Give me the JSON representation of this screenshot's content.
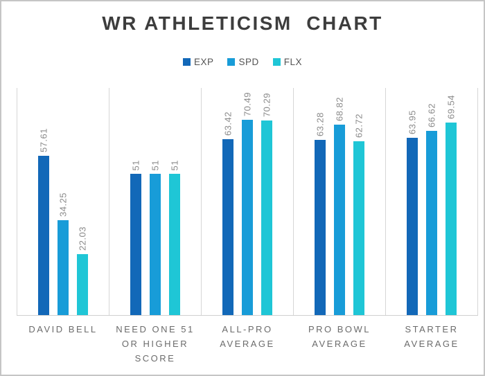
{
  "chart_data": {
    "type": "bar",
    "title": "WR ATHLETICISM  CHART",
    "legend_position": "top-center",
    "categories": [
      "DAVID BELL",
      "NEED ONE 51 OR HIGHER SCORE",
      "ALL-PRO AVERAGE",
      "PRO BOWL AVERAGE",
      "STARTER AVERAGE"
    ],
    "category_label_lines": [
      [
        "DAVID BELL"
      ],
      [
        "NEED ONE 51",
        "OR HIGHER",
        "SCORE"
      ],
      [
        "ALL-PRO",
        "AVERAGE"
      ],
      [
        "PRO BOWL",
        "AVERAGE"
      ],
      [
        "STARTER",
        "AVERAGE"
      ]
    ],
    "series": [
      {
        "name": "EXP",
        "color": "#1268b8",
        "values": [
          57.61,
          51,
          63.42,
          63.28,
          63.95
        ]
      },
      {
        "name": "SPD",
        "color": "#189cd8",
        "values": [
          34.25,
          51,
          70.49,
          68.82,
          66.62
        ]
      },
      {
        "name": "FLX",
        "color": "#1fc6d6",
        "values": [
          22.03,
          51,
          70.29,
          62.72,
          69.54
        ]
      }
    ],
    "ylim": [
      0,
      82
    ],
    "grid": "vertical category separator lines only, no y-axis labels",
    "value_label_rotation": -90,
    "colors": {
      "title": "#3d3d3d",
      "category_labels": "#6b6b6b",
      "value_labels": "#8a8a8a",
      "gridline": "#d6d6d6",
      "axis_line": "#cfcfcf",
      "frame_border": "#c5c5c5",
      "background": "#ffffff"
    }
  }
}
